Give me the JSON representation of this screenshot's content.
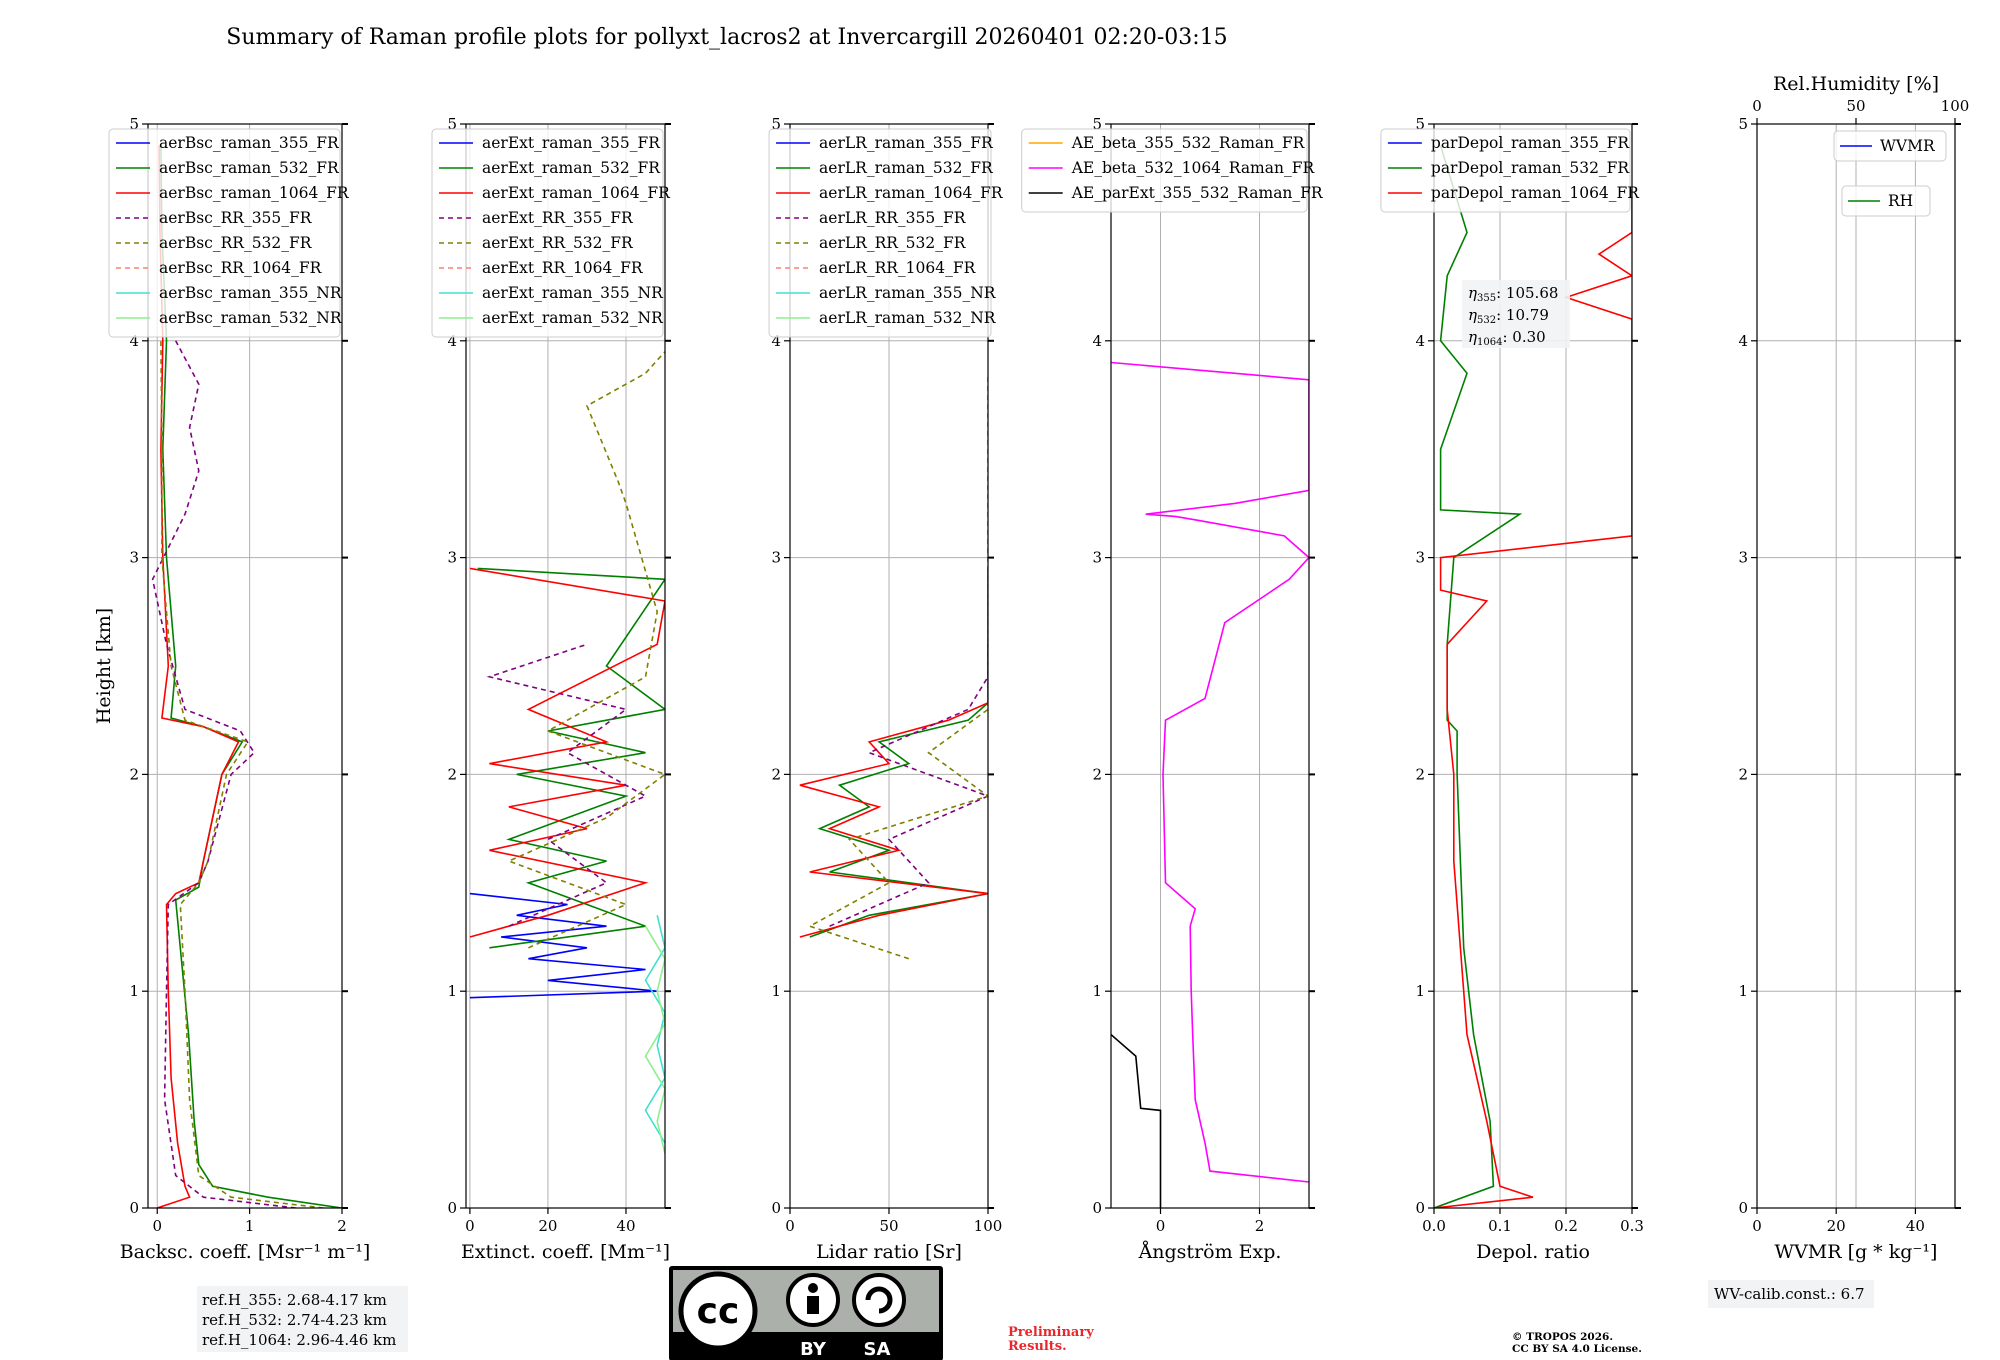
{
  "title": "Summary of Raman profile plots for pollyxt_lacros2 at Invercargill 20260401 02:20-03:15",
  "chart_data": [
    {
      "type": "line",
      "panel": "backscatter",
      "xlabel": "Backsc. coeff. [Msr⁻¹ m⁻¹]",
      "ylabel": "Height [km]",
      "xlim": [
        -0.1,
        2
      ],
      "ylim": [
        0,
        5
      ],
      "xticks": [
        "0",
        "1",
        "2"
      ],
      "yticks": [
        "0",
        "1",
        "2",
        "3",
        "4",
        "5"
      ],
      "legend": "top-right",
      "series": [
        {
          "name": "aerBsc_raman_355_FR",
          "color": "#0000ff",
          "dash": "",
          "y": [],
          "x": []
        },
        {
          "name": "aerBsc_raman_532_FR",
          "color": "#008000",
          "dash": "",
          "y": [
            0.0,
            0.05,
            0.1,
            0.2,
            0.4,
            0.8,
            1.2,
            1.42,
            1.48,
            1.6,
            2.0,
            2.15,
            2.22,
            2.26,
            2.5,
            3.0,
            3.5,
            4.0,
            4.5,
            4.9
          ],
          "x": [
            2.0,
            1.2,
            0.6,
            0.45,
            0.4,
            0.34,
            0.25,
            0.2,
            0.45,
            0.5,
            0.7,
            0.92,
            0.5,
            0.15,
            0.2,
            0.1,
            0.06,
            0.1,
            0.05,
            0.04
          ]
        },
        {
          "name": "aerBsc_raman_1064_FR",
          "color": "#ff0000",
          "dash": "",
          "y": [
            0.0,
            0.05,
            0.1,
            0.3,
            0.6,
            1.0,
            1.4,
            1.45,
            1.5,
            1.6,
            2.0,
            2.15,
            2.22,
            2.26,
            2.5,
            3.0,
            3.5,
            4.0,
            4.5,
            4.9
          ],
          "x": [
            0.0,
            0.35,
            0.3,
            0.22,
            0.15,
            0.12,
            0.1,
            0.2,
            0.45,
            0.5,
            0.7,
            0.88,
            0.5,
            0.05,
            0.12,
            0.06,
            0.04,
            0.06,
            0.03,
            0.02
          ]
        },
        {
          "name": "aerBsc_RR_355_FR",
          "color": "#800080",
          "dash": "5,4",
          "y": [
            0.0,
            0.05,
            0.15,
            0.5,
            1.0,
            1.4,
            1.5,
            1.6,
            2.0,
            2.1,
            2.2,
            2.3,
            2.6,
            2.9,
            3.2,
            3.4,
            3.6,
            3.8,
            4.0
          ],
          "x": [
            1.5,
            0.5,
            0.2,
            0.08,
            0.1,
            0.12,
            0.45,
            0.55,
            0.8,
            1.05,
            0.9,
            0.3,
            0.1,
            -0.05,
            0.3,
            0.45,
            0.35,
            0.45,
            0.2
          ]
        },
        {
          "name": "aerBsc_RR_532_FR",
          "color": "#808000",
          "dash": "5,4",
          "y": [
            0.0,
            0.05,
            0.15,
            0.5,
            1.0,
            1.4,
            1.5,
            1.6,
            2.0,
            2.15,
            2.25,
            2.5,
            3.0,
            3.5,
            4.0
          ],
          "x": [
            1.8,
            0.8,
            0.45,
            0.35,
            0.3,
            0.25,
            0.45,
            0.55,
            0.75,
            0.98,
            0.3,
            0.15,
            0.05,
            0.05,
            0.04
          ]
        },
        {
          "name": "aerBsc_RR_1064_FR",
          "color": "#fa8072",
          "dash": "5,4",
          "y": [],
          "x": []
        },
        {
          "name": "aerBsc_raman_355_NR",
          "color": "#40e0d0",
          "dash": "",
          "y": [],
          "x": []
        },
        {
          "name": "aerBsc_raman_532_NR",
          "color": "#90ee90",
          "dash": "",
          "y": [],
          "x": []
        }
      ],
      "annotations": [
        "ref.H_355: 2.68-4.17 km",
        "ref.H_532: 2.74-4.23 km",
        "ref.H_1064: 2.96-4.46 km"
      ]
    },
    {
      "type": "line",
      "panel": "extinction",
      "xlabel": "Extinct. coeff. [Mm⁻¹]",
      "xlim": [
        -1,
        50
      ],
      "ylim": [
        0,
        5
      ],
      "xticks": [
        "0",
        "20",
        "40"
      ],
      "yticks": [
        "0",
        "1",
        "2",
        "3",
        "4",
        "5"
      ],
      "legend": "top-right",
      "series": [
        {
          "name": "aerExt_raman_355_FR",
          "color": "#0000ff",
          "dash": "",
          "y": [
            0.97,
            1.0,
            1.05,
            1.1,
            1.15,
            1.2,
            1.25,
            1.3,
            1.35,
            1.4,
            1.45
          ],
          "x": [
            0,
            48,
            20,
            45,
            15,
            30,
            8,
            35,
            12,
            25,
            0
          ]
        },
        {
          "name": "aerExt_raman_532_FR",
          "color": "#008000",
          "dash": "",
          "y": [
            1.2,
            1.3,
            1.4,
            1.5,
            1.6,
            1.7,
            1.8,
            1.9,
            2.0,
            2.1,
            2.2,
            2.3,
            2.5,
            2.9,
            2.95
          ],
          "x": [
            5,
            45,
            30,
            15,
            35,
            10,
            25,
            40,
            12,
            45,
            20,
            50,
            35,
            50,
            2
          ]
        },
        {
          "name": "aerExt_raman_1064_FR",
          "color": "#ff0000",
          "dash": "",
          "y": [
            1.25,
            1.35,
            1.5,
            1.65,
            1.75,
            1.85,
            1.95,
            2.05,
            2.15,
            2.3,
            2.6,
            2.8,
            2.95
          ],
          "x": [
            0,
            20,
            45,
            5,
            30,
            10,
            40,
            5,
            35,
            15,
            48,
            50,
            0
          ]
        },
        {
          "name": "aerExt_RR_355_FR",
          "color": "#800080",
          "dash": "5,4",
          "y": [
            1.3,
            1.5,
            1.7,
            1.9,
            2.1,
            2.3,
            2.45,
            2.6
          ],
          "x": [
            10,
            35,
            20,
            45,
            25,
            40,
            5,
            30
          ]
        },
        {
          "name": "aerExt_RR_532_FR",
          "color": "#808000",
          "dash": "5,4",
          "y": [
            1.2,
            1.4,
            1.6,
            1.8,
            2.0,
            2.2,
            2.45,
            2.75,
            3.25,
            3.35,
            3.7,
            3.85,
            3.95
          ],
          "x": [
            15,
            40,
            10,
            35,
            50,
            20,
            45,
            48,
            40,
            38,
            30,
            45,
            50
          ]
        },
        {
          "name": "aerExt_RR_1064_FR",
          "color": "#fa8072",
          "dash": "5,4",
          "y": [],
          "x": []
        },
        {
          "name": "aerExt_raman_355_NR",
          "color": "#40e0d0",
          "dash": "",
          "y": [
            0.3,
            0.45,
            0.6,
            0.75,
            0.9,
            1.05,
            1.2,
            1.35
          ],
          "x": [
            50,
            45,
            50,
            48,
            50,
            45,
            50,
            48
          ]
        },
        {
          "name": "aerExt_raman_532_NR",
          "color": "#90ee90",
          "dash": "",
          "y": [
            0.25,
            0.4,
            0.55,
            0.7,
            0.85,
            1.0,
            1.15,
            1.3
          ],
          "x": [
            50,
            48,
            50,
            45,
            50,
            48,
            50,
            45
          ]
        }
      ]
    },
    {
      "type": "line",
      "panel": "lidar_ratio",
      "xlabel": "Lidar ratio [Sr]",
      "xlim": [
        0,
        100
      ],
      "ylim": [
        0,
        5
      ],
      "xticks": [
        "0",
        "50",
        "100"
      ],
      "yticks": [
        "0",
        "1",
        "2",
        "3",
        "4",
        "5"
      ],
      "legend": "top-right",
      "series": [
        {
          "name": "aerLR_raman_355_FR",
          "color": "#0000ff",
          "dash": "",
          "y": [],
          "x": []
        },
        {
          "name": "aerLR_raman_532_FR",
          "color": "#008000",
          "dash": "",
          "y": [
            1.25,
            1.35,
            1.45,
            1.55,
            1.65,
            1.75,
            1.85,
            1.95,
            2.05,
            2.15,
            2.25,
            2.33
          ],
          "x": [
            10,
            40,
            100,
            20,
            50,
            15,
            40,
            25,
            60,
            45,
            90,
            100
          ]
        },
        {
          "name": "aerLR_raman_1064_FR",
          "color": "#ff0000",
          "dash": "",
          "y": [
            1.25,
            1.35,
            1.45,
            1.55,
            1.65,
            1.75,
            1.85,
            1.95,
            2.05,
            2.15,
            2.25,
            2.33,
            2.95
          ],
          "x": [
            5,
            45,
            100,
            10,
            55,
            20,
            45,
            5,
            50,
            40,
            80,
            100,
            100
          ]
        },
        {
          "name": "aerLR_RR_355_FR",
          "color": "#800080",
          "dash": "5,4",
          "y": [
            1.3,
            1.5,
            1.7,
            1.9,
            2.1,
            2.3,
            2.45,
            2.6
          ],
          "x": [
            20,
            70,
            50,
            100,
            40,
            90,
            100,
            100
          ]
        },
        {
          "name": "aerLR_RR_532_FR",
          "color": "#808000",
          "dash": "5,4",
          "y": [
            1.15,
            1.3,
            1.5,
            1.7,
            1.9,
            2.1,
            2.3,
            2.75,
            3.15,
            3.25,
            3.35,
            3.7,
            3.85
          ],
          "x": [
            60,
            10,
            50,
            30,
            100,
            70,
            100,
            100,
            100,
            100,
            100,
            100,
            100
          ]
        },
        {
          "name": "aerLR_RR_1064_FR",
          "color": "#fa8072",
          "dash": "5,4",
          "y": [],
          "x": []
        },
        {
          "name": "aerLR_raman_355_NR",
          "color": "#40e0d0",
          "dash": "",
          "y": [],
          "x": []
        },
        {
          "name": "aerLR_raman_532_NR",
          "color": "#90ee90",
          "dash": "",
          "y": [],
          "x": []
        }
      ]
    },
    {
      "type": "line",
      "panel": "angstrom",
      "xlabel": "Ångström Exp.",
      "xlim": [
        -1,
        3
      ],
      "ylim": [
        0,
        5
      ],
      "xticks": [
        "0",
        "2"
      ],
      "yticks": [
        "0",
        "1",
        "2",
        "3",
        "4",
        "5"
      ],
      "legend": "top-right",
      "series": [
        {
          "name": "AE_beta_355_532_Raman_FR",
          "color": "#ffa500",
          "dash": "",
          "y": [],
          "x": []
        },
        {
          "name": "AE_beta_532_1064_Raman_FR",
          "color": "#ff00ff",
          "dash": "",
          "y": [
            0.12,
            0.17,
            0.3,
            0.5,
            0.8,
            1.0,
            1.3,
            1.38,
            1.5,
            2.0,
            2.25,
            2.35,
            2.7,
            2.9,
            3.0,
            3.1,
            3.17,
            3.19,
            3.2,
            3.25,
            3.31,
            3.82,
            3.9
          ],
          "x": [
            3.0,
            1.0,
            0.9,
            0.7,
            0.65,
            0.62,
            0.6,
            0.7,
            0.1,
            0.05,
            0.1,
            0.9,
            1.3,
            2.6,
            3.0,
            2.5,
            0.8,
            0.3,
            -0.3,
            1.5,
            3.0,
            3.0,
            -1.0
          ]
        },
        {
          "name": "AE_parExt_355_532_Raman_FR",
          "color": "#000000",
          "dash": "",
          "y": [
            0.8,
            0.7,
            0.46,
            0.45,
            0.0
          ],
          "x": [
            -1.0,
            -0.5,
            -0.4,
            0.0,
            0.0
          ]
        }
      ]
    },
    {
      "type": "line",
      "panel": "depol",
      "xlabel": "Depol. ratio",
      "xlim": [
        0,
        0.3
      ],
      "ylim": [
        0,
        5
      ],
      "xticks": [
        "0.0",
        "0.1",
        "0.2",
        "0.3"
      ],
      "yticks": [
        "0",
        "1",
        "2",
        "3",
        "4",
        "5"
      ],
      "legend": "top-right",
      "series": [
        {
          "name": "parDepol_raman_355_FR",
          "color": "#0000ff",
          "dash": "",
          "y": [],
          "x": []
        },
        {
          "name": "parDepol_raman_532_FR",
          "color": "#008000",
          "dash": "",
          "y": [
            0.0,
            0.1,
            0.4,
            0.8,
            1.2,
            1.6,
            2.0,
            2.2,
            2.25,
            2.6,
            3.0,
            3.2,
            3.22,
            3.5,
            3.85,
            4.0,
            4.3,
            4.5,
            4.9
          ],
          "x": [
            0.0,
            0.09,
            0.085,
            0.06,
            0.045,
            0.04,
            0.035,
            0.035,
            0.02,
            0.02,
            0.03,
            0.13,
            0.01,
            0.01,
            0.05,
            0.01,
            0.02,
            0.05,
            0.01
          ]
        },
        {
          "name": "parDepol_raman_1064_FR",
          "color": "#ff0000",
          "dash": "",
          "y": [
            0.0,
            0.05,
            0.1,
            0.4,
            0.8,
            1.2,
            1.6,
            2.0,
            2.3,
            2.6,
            2.8,
            2.85,
            3.0,
            3.1,
            4.1,
            4.2,
            4.3,
            4.4,
            4.5,
            4.7
          ],
          "x": [
            0.0,
            0.15,
            0.1,
            0.08,
            0.05,
            0.04,
            0.03,
            0.03,
            0.02,
            0.02,
            0.08,
            0.01,
            0.01,
            0.3,
            0.3,
            0.2,
            0.3,
            0.25,
            0.3,
            0.3
          ]
        }
      ],
      "annotations": [
        "η355: 105.68",
        "η532: 10.79",
        "η1064: 0.30"
      ],
      "eta_labels": {
        "e355": "105.68",
        "e532": "10.79",
        "e1064": "0.30"
      }
    },
    {
      "type": "line",
      "panel": "wvmr",
      "xlabel": "WVMR [g * kg⁻¹]",
      "top_xlabel": "Rel.Humidity [%]",
      "xlim": [
        0,
        50
      ],
      "ylim": [
        0,
        5
      ],
      "top_xlim": [
        0,
        100
      ],
      "xticks": [
        "0",
        "20",
        "40"
      ],
      "top_xticks": [
        "0",
        "50",
        "100"
      ],
      "yticks": [
        "0",
        "1",
        "2",
        "3",
        "4",
        "5"
      ],
      "series": [
        {
          "name": "WVMR",
          "color": "#0000ff",
          "dash": "",
          "y": [],
          "x": []
        },
        {
          "name": "RH",
          "color": "#008000",
          "dash": "",
          "y": [],
          "x": []
        }
      ],
      "annotations": [
        "WV-calib.const.: 6.7"
      ]
    }
  ],
  "footer": {
    "cc_label_by": "BY",
    "cc_label_sa": "SA",
    "prelim_1": "Preliminary",
    "prelim_2": "Results.",
    "copyright_1": "© TROPOS 2026.",
    "copyright_2": "CC BY SA 4.0 License."
  }
}
